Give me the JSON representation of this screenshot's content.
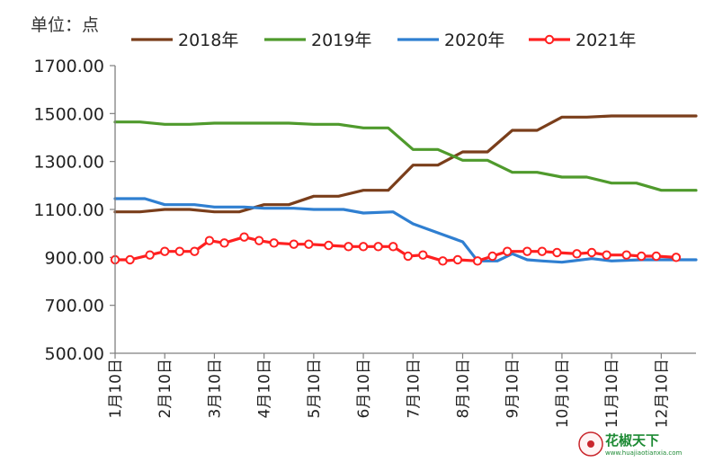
{
  "unit_label": "单位：点",
  "colors": {
    "s2018": "#7a3e1b",
    "s2019": "#4f9a2c",
    "s2020": "#2f7fd1",
    "s2021": "#ff2020",
    "axis": "#7f7f7f"
  },
  "watermark": {
    "text": "花椒天下",
    "url": "www.huajiaotianxia.com"
  },
  "chart_data": {
    "type": "line",
    "title": "",
    "xlabel": "",
    "ylabel": "单位：点",
    "ylim": [
      500,
      1700
    ],
    "y_ticks": [
      "1700.00",
      "1500.00",
      "1300.00",
      "1100.00",
      "900.00",
      "700.00",
      "500.00"
    ],
    "x_range": [
      0,
      11.7
    ],
    "x_ticks": [
      "1月10日",
      "2月10日",
      "3月10日",
      "4月10日",
      "5月10日",
      "6月10日",
      "7月10日",
      "8月10日",
      "9月10日",
      "10月10日",
      "11月10日",
      "12月10日"
    ],
    "legend_position": "top",
    "series": [
      {
        "name": "2018年",
        "x": [
          0,
          0.5,
          1,
          1.5,
          2,
          2.5,
          3,
          3.5,
          4,
          4.5,
          5,
          5.5,
          6,
          6.5,
          7,
          7.5,
          8,
          8.5,
          9,
          9.5,
          10,
          10.5,
          11,
          11.5,
          11.7
        ],
        "y": [
          1090,
          1090,
          1100,
          1100,
          1090,
          1090,
          1120,
          1120,
          1155,
          1155,
          1180,
          1180,
          1285,
          1285,
          1340,
          1340,
          1430,
          1430,
          1485,
          1485,
          1490,
          1490,
          1490,
          1490,
          1490
        ]
      },
      {
        "name": "2019年",
        "x": [
          0,
          0.5,
          1,
          1.5,
          2,
          2.5,
          3,
          3.5,
          4,
          4.5,
          5,
          5.5,
          6,
          6.5,
          7,
          7.5,
          8,
          8.5,
          9,
          9.5,
          10,
          10.5,
          11,
          11.5,
          11.7
        ],
        "y": [
          1465,
          1465,
          1455,
          1455,
          1460,
          1460,
          1460,
          1460,
          1455,
          1455,
          1440,
          1440,
          1350,
          1350,
          1305,
          1305,
          1255,
          1255,
          1235,
          1235,
          1210,
          1210,
          1180,
          1180,
          1180
        ]
      },
      {
        "name": "2020年",
        "x": [
          0,
          0.6,
          1,
          1.6,
          2,
          2.6,
          3,
          3.6,
          4,
          4.6,
          5,
          5.6,
          6,
          6.6,
          7,
          7.3,
          7.7,
          8,
          8.3,
          8.6,
          9,
          9.6,
          10,
          10.6,
          11,
          11.7
        ],
        "y": [
          1145,
          1145,
          1120,
          1120,
          1110,
          1110,
          1105,
          1105,
          1100,
          1100,
          1085,
          1090,
          1040,
          995,
          965,
          885,
          885,
          915,
          890,
          885,
          880,
          895,
          885,
          890,
          890,
          890
        ]
      },
      {
        "name": "2021年",
        "x": [
          0,
          0.3,
          0.7,
          1,
          1.3,
          1.6,
          1.9,
          2.2,
          2.6,
          2.9,
          3.2,
          3.6,
          3.9,
          4.3,
          4.7,
          5,
          5.3,
          5.6,
          5.9,
          6.2,
          6.6,
          6.9,
          7.3,
          7.6,
          7.9,
          8.3,
          8.6,
          8.9,
          9.3,
          9.6,
          9.9,
          10.3,
          10.6,
          10.9,
          11.3
        ],
        "y": [
          890,
          890,
          910,
          925,
          925,
          925,
          970,
          960,
          985,
          970,
          960,
          955,
          955,
          950,
          945,
          945,
          945,
          945,
          905,
          910,
          885,
          890,
          885,
          905,
          925,
          925,
          925,
          920,
          915,
          920,
          910,
          910,
          905,
          905,
          900
        ]
      }
    ]
  }
}
